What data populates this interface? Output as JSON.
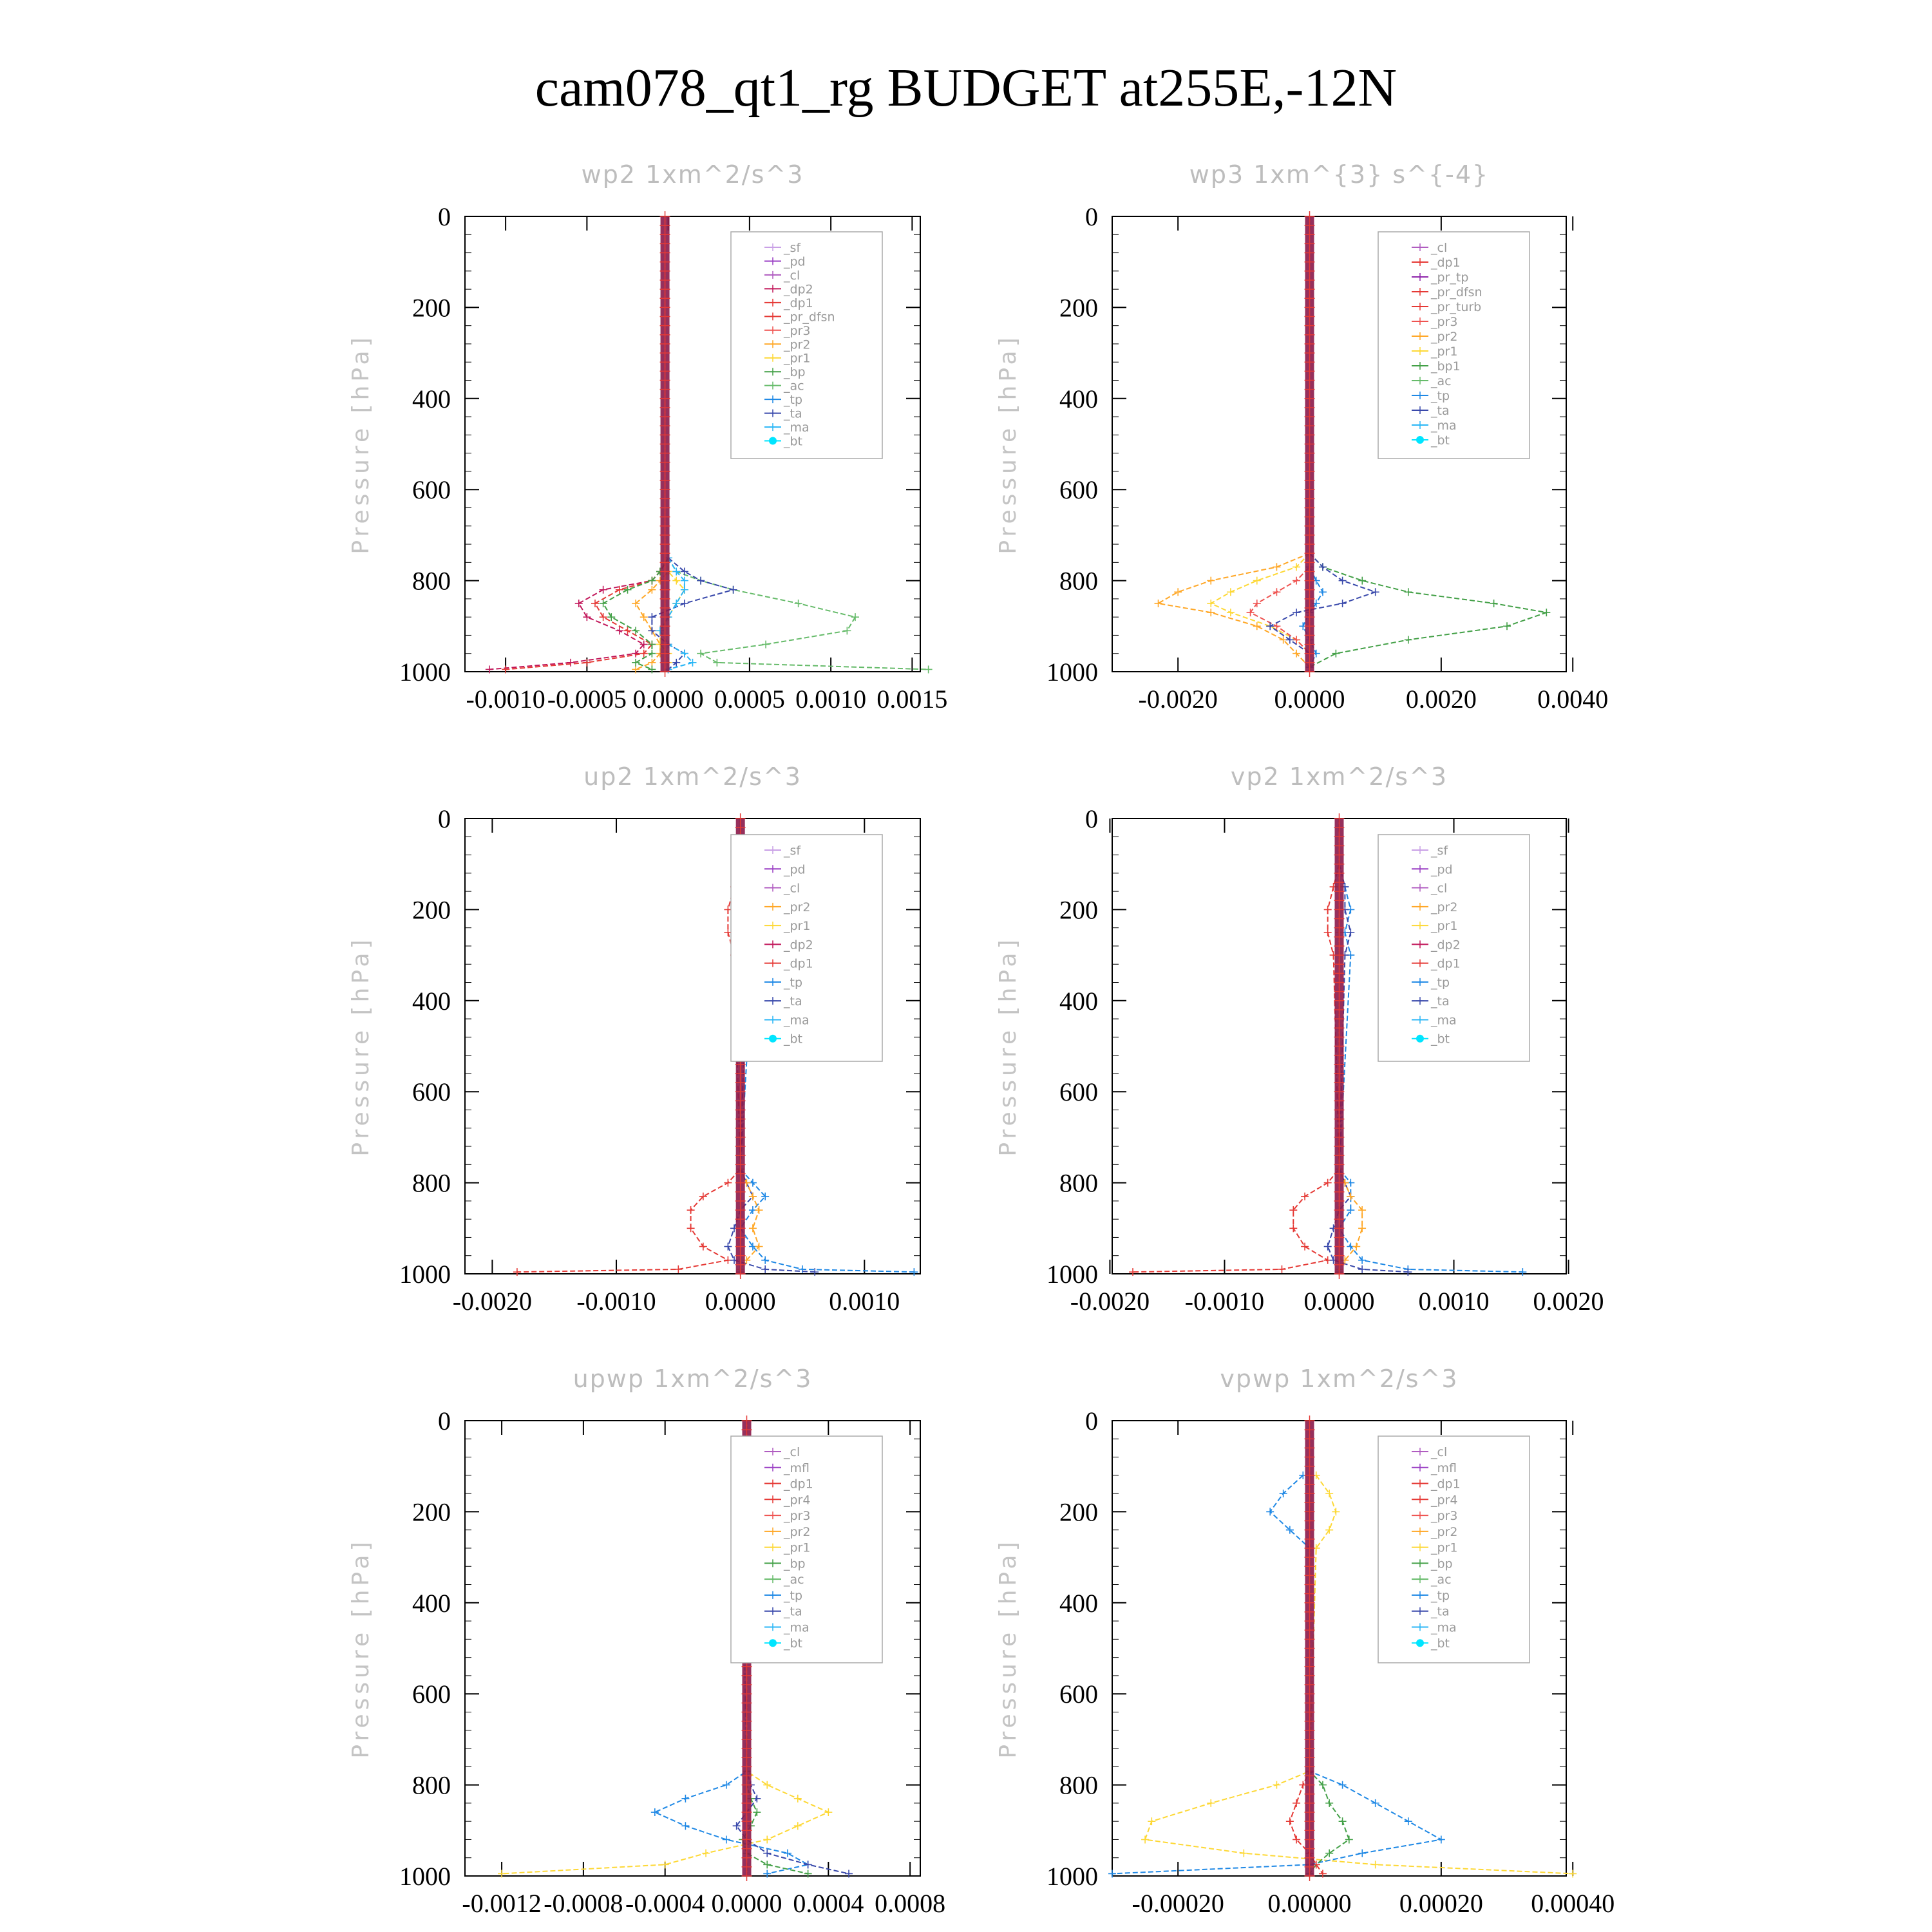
{
  "figure": {
    "title": "cam078_qt1_rg  BUDGET at255E,-12N"
  },
  "colors": {
    "_sf": "#c9a0e6",
    "_pd": "#9a3fc4",
    "_cl": "#b05cc0",
    "_mfl": "#9a3fc4",
    "_dp2": "#c2185b",
    "_dp1": "#e53935",
    "_pr_dfsn": "#e53935",
    "_pr_tp": "#8e24aa",
    "_pr_turb": "#e53935",
    "_pr4": "#e53935",
    "_pr3": "#ef5350",
    "_pr2": "#ffa726",
    "_pr1": "#fdd835",
    "_bp1": "#43a047",
    "_bp": "#43a047",
    "_ac": "#66bb6a",
    "_tp": "#1e88e5",
    "_ta": "#3949ab",
    "_ma": "#29b6f6",
    "_bt": "#00e5ff",
    "budget_band": "#8b1a4a",
    "frame": "#000000",
    "label_gray": "#bdbdbd"
  },
  "chart_data": [
    {
      "id": "wp2",
      "type": "line",
      "title": "wp2   1xm^2/s^3",
      "ylabel": "Pressure [hPa]",
      "ylim": [
        0,
        1000
      ],
      "y_inverted": true,
      "y_ticks": [
        0,
        200,
        400,
        600,
        800,
        1000
      ],
      "xlim": [
        -0.00125,
        0.00155
      ],
      "x_ticks": [
        -0.001,
        -0.0005,
        0.0,
        0.0005,
        0.001,
        0.0015
      ],
      "x_tick_labels": [
        "-0.0010",
        "-0.0005",
        "0.0000",
        "0.0005",
        "0.0010",
        "0.0015"
      ],
      "budget_x": -2e-05,
      "legend": [
        "_sf",
        "_pd",
        "_cl",
        "_dp2",
        "_dp1",
        "_pr_dfsn",
        "_pr3",
        "_pr2",
        "_pr1",
        "_bp",
        "_ac",
        "_tp",
        "_ta",
        "_ma",
        "_bt"
      ],
      "y": [
        750,
        780,
        800,
        820,
        850,
        880,
        910,
        940,
        960,
        980,
        995
      ],
      "series": [
        {
          "name": "_dp2",
          "values": [
            0,
            -5e-05,
            -0.0001,
            -0.0004,
            -0.00055,
            -0.0005,
            -0.0003,
            -0.00015,
            -0.0002,
            -0.0006,
            -0.0011
          ]
        },
        {
          "name": "_dp1",
          "values": [
            0,
            -5e-05,
            -0.0001,
            -0.0003,
            -0.00045,
            -0.0004,
            -0.00025,
            -0.0001,
            -0.00015,
            -0.0005,
            -0.001
          ]
        },
        {
          "name": "_pr2",
          "values": [
            0,
            0,
            -5e-05,
            -0.0001,
            -0.0002,
            -0.00015,
            -0.0001,
            -5e-05,
            -5e-05,
            -0.0001,
            -0.0002
          ]
        },
        {
          "name": "_pr1",
          "values": [
            0,
            0,
            5e-05,
            0.0001,
            5e-05,
            0.0,
            -5e-05,
            -5e-05,
            0.0,
            0.0,
            0.0
          ]
        },
        {
          "name": "_bp",
          "values": [
            0,
            -5e-05,
            -0.0001,
            -0.00025,
            -0.0004,
            -0.00035,
            -0.0002,
            -0.0001,
            -0.0001,
            -0.0002,
            -0.0001
          ]
        },
        {
          "name": "_ac",
          "values": [
            0,
            5e-05,
            0.0002,
            0.0004,
            0.0008,
            0.00115,
            0.0011,
            0.0006,
            0.0002,
            0.0003,
            0.0016
          ]
        },
        {
          "name": "_ta",
          "values": [
            0,
            0.0001,
            0.0002,
            0.0004,
            0.0001,
            -0.0001,
            -0.0001,
            0.0,
            0.0001,
            5e-05,
            0.0
          ]
        },
        {
          "name": "_ma",
          "values": [
            0,
            5e-05,
            0.0001,
            0.0001,
            5e-05,
            0.0,
            -5e-05,
            0.0,
            0.0001,
            0.00015,
            0.0
          ]
        }
      ]
    },
    {
      "id": "wp3",
      "type": "line",
      "title": "wp3   1xm^{3} s^{-4}",
      "ylabel": "Pressure [hPa]",
      "ylim": [
        0,
        1000
      ],
      "y_inverted": true,
      "y_ticks": [
        0,
        200,
        400,
        600,
        800,
        1000
      ],
      "xlim": [
        -0.003,
        0.0039
      ],
      "x_ticks": [
        -0.002,
        0.0,
        0.002,
        0.004
      ],
      "x_tick_labels": [
        "-0.0020",
        "0.0000",
        "0.0020",
        "0.0040"
      ],
      "budget_x": 0.0,
      "legend": [
        "_cl",
        "_dp1",
        "_pr_tp",
        "_pr_dfsn",
        "_pr_turb",
        "_pr3",
        "_pr2",
        "_pr1",
        "_bp1",
        "_ac",
        "_tp",
        "_ta",
        "_ma",
        "_bt"
      ],
      "y": [
        740,
        770,
        800,
        825,
        850,
        870,
        900,
        930,
        960,
        990
      ],
      "series": [
        {
          "name": "_pr2",
          "values": [
            0,
            -0.0005,
            -0.0015,
            -0.002,
            -0.0023,
            -0.0015,
            -0.0008,
            -0.0004,
            -0.0002,
            0.0
          ]
        },
        {
          "name": "_pr1",
          "values": [
            0,
            -0.0002,
            -0.0008,
            -0.0012,
            -0.0015,
            -0.0012,
            -0.0006,
            -0.0002,
            0.0,
            0.0
          ]
        },
        {
          "name": "_pr3",
          "values": [
            0,
            0,
            -0.0002,
            -0.0005,
            -0.0008,
            -0.0009,
            -0.0005,
            -0.0002,
            0.0,
            0.0
          ]
        },
        {
          "name": "_bp1",
          "values": [
            0,
            0.0002,
            0.0008,
            0.0015,
            0.0028,
            0.0036,
            0.003,
            0.0015,
            0.0004,
            0.0
          ]
        },
        {
          "name": "_ta",
          "values": [
            0,
            0.0002,
            0.0005,
            0.001,
            0.0005,
            -0.0002,
            -0.0006,
            -0.0003,
            0.0,
            0.0
          ]
        },
        {
          "name": "_tp",
          "values": [
            0,
            0,
            0.0001,
            0.0002,
            0.0001,
            0.0,
            -0.0001,
            0.0,
            0.0001,
            0.0
          ]
        }
      ]
    },
    {
      "id": "up2",
      "type": "line",
      "title": "up2   1xm^2/s^3",
      "ylabel": "Pressure [hPa]",
      "ylim": [
        0,
        1000
      ],
      "y_inverted": true,
      "y_ticks": [
        0,
        200,
        400,
        600,
        800,
        1000
      ],
      "xlim": [
        -0.00222,
        0.00145
      ],
      "x_ticks": [
        -0.002,
        -0.001,
        0.0,
        0.001
      ],
      "x_tick_labels": [
        "-0.0020",
        "-0.0010",
        "0.0000",
        "0.0010"
      ],
      "budget_x": 0.0,
      "legend": [
        "_sf",
        "_pd",
        "_cl",
        "_pr2",
        "_pr1",
        "_dp2",
        "_dp1",
        "_tp",
        "_ta",
        "_ma",
        "_bt"
      ],
      "y": [
        100,
        150,
        200,
        250,
        300,
        770,
        800,
        830,
        860,
        900,
        940,
        970,
        990,
        996
      ],
      "series": [
        {
          "name": "_dp1",
          "values": [
            0,
            -5e-05,
            -0.0001,
            -0.0001,
            -5e-05,
            0,
            -0.0001,
            -0.0003,
            -0.0004,
            -0.0004,
            -0.0003,
            -0.0001,
            -0.0005,
            -0.0018
          ]
        },
        {
          "name": "_tp",
          "values": [
            0,
            5e-05,
            0.0001,
            5e-05,
            0.0001,
            0,
            0.0001,
            0.0002,
            0.0001,
            0.0,
            0.0001,
            0.0002,
            0.0005,
            0.0014
          ]
        },
        {
          "name": "_ta",
          "values": [
            0,
            5e-05,
            5e-05,
            0.0001,
            5e-05,
            0,
            5e-05,
            0.0001,
            0.0,
            -5e-05,
            -0.0001,
            -5e-05,
            0.0002,
            0.0006
          ]
        },
        {
          "name": "_pr2",
          "values": [
            0,
            0,
            0,
            0,
            0,
            0,
            5e-05,
            0.0001,
            0.00015,
            0.0001,
            0.00015,
            5e-05,
            0.0,
            0.0
          ]
        }
      ]
    },
    {
      "id": "vp2",
      "type": "line",
      "title": "vp2   1xm^2/s^3",
      "ylabel": "Pressure [hPa]",
      "ylim": [
        0,
        1000
      ],
      "y_inverted": true,
      "y_ticks": [
        0,
        200,
        400,
        600,
        800,
        1000
      ],
      "xlim": [
        -0.00198,
        0.00198
      ],
      "x_ticks": [
        -0.002,
        -0.001,
        0.0,
        0.001,
        0.002
      ],
      "x_tick_labels": [
        "-0.0020",
        "-0.0010",
        "0.0000",
        "0.0010",
        "0.0020"
      ],
      "budget_x": 0.0,
      "legend": [
        "_sf",
        "_pd",
        "_cl",
        "_pr2",
        "_pr1",
        "_dp2",
        "_dp1",
        "_tp",
        "_ta",
        "_ma",
        "_bt"
      ],
      "y": [
        100,
        150,
        200,
        250,
        300,
        770,
        800,
        830,
        860,
        900,
        940,
        970,
        990,
        996
      ],
      "series": [
        {
          "name": "_dp1",
          "values": [
            0,
            -5e-05,
            -0.0001,
            -0.0001,
            -5e-05,
            0,
            -0.0001,
            -0.0003,
            -0.0004,
            -0.0004,
            -0.0003,
            -0.0001,
            -0.0005,
            -0.0018
          ]
        },
        {
          "name": "_tp",
          "values": [
            0,
            5e-05,
            0.0001,
            5e-05,
            0.0001,
            0,
            0.0001,
            0.0001,
            0.0001,
            0.0,
            0.0001,
            0.0002,
            0.0006,
            0.0016
          ]
        },
        {
          "name": "_ta",
          "values": [
            0,
            5e-05,
            5e-05,
            0.0001,
            5e-05,
            0,
            5e-05,
            0.0001,
            0.0,
            -5e-05,
            -0.0001,
            -5e-05,
            0.0002,
            0.0006
          ]
        },
        {
          "name": "_pr2",
          "values": [
            0,
            0,
            0,
            0,
            0,
            0,
            5e-05,
            0.0001,
            0.0002,
            0.0002,
            0.00015,
            5e-05,
            0.0,
            0.0
          ]
        }
      ]
    },
    {
      "id": "upwp",
      "type": "line",
      "title": "upwp   1xm^2/s^3",
      "ylabel": "Pressure [hPa]",
      "ylim": [
        0,
        1000
      ],
      "y_inverted": true,
      "y_ticks": [
        0,
        200,
        400,
        600,
        800,
        1000
      ],
      "xlim": [
        -0.00138,
        0.00085
      ],
      "x_ticks": [
        -0.0012,
        -0.0008,
        -0.0004,
        0.0,
        0.0004,
        0.0008
      ],
      "x_tick_labels": [
        "-0.0012",
        "-0.0008",
        "-0.0004",
        "0.0000",
        "0.0004",
        "0.0008"
      ],
      "budget_x": 0.0,
      "legend": [
        "_cl",
        "_mfl",
        "_dp1",
        "_pr4",
        "_pr3",
        "_pr2",
        "_pr1",
        "_bp",
        "_ac",
        "_tp",
        "_ta",
        "_ma",
        "_bt"
      ],
      "y": [
        150,
        200,
        250,
        300,
        770,
        800,
        830,
        860,
        890,
        920,
        950,
        975,
        995
      ],
      "series": [
        {
          "name": "_pr1",
          "values": [
            2e-05,
            3e-05,
            3e-05,
            0.0,
            0.0,
            0.0001,
            0.00025,
            0.0004,
            0.00025,
            0.0001,
            -0.0002,
            -0.0004,
            -0.0012
          ]
        },
        {
          "name": "_tp",
          "values": [
            -2e-05,
            -5e-05,
            -3e-05,
            -2e-05,
            0.0,
            -0.0001,
            -0.0003,
            -0.00045,
            -0.0003,
            -0.0001,
            0.0002,
            0.0003,
            0.0001
          ]
        },
        {
          "name": "_ta",
          "values": [
            0,
            0,
            0,
            0,
            0,
            2e-05,
            5e-05,
            0.0,
            -5e-05,
            0.0,
            0.0001,
            0.0003,
            0.0005
          ]
        },
        {
          "name": "_bp",
          "values": [
            0,
            0,
            0,
            0,
            0,
            0.0,
            2e-05,
            5e-05,
            2e-05,
            -2e-05,
            0.0,
            0.0001,
            0.0003
          ]
        }
      ]
    },
    {
      "id": "vpwp",
      "type": "line",
      "title": "vpwp   1xm^2/s^3",
      "ylabel": "Pressure [hPa]",
      "ylim": [
        0,
        1000
      ],
      "y_inverted": true,
      "y_ticks": [
        0,
        200,
        400,
        600,
        800,
        1000
      ],
      "xlim": [
        -0.0003,
        0.00039
      ],
      "x_ticks": [
        -0.0002,
        0.0,
        0.0002,
        0.0004
      ],
      "x_tick_labels": [
        "-0.00020",
        "0.00000",
        "0.00020",
        "0.00040"
      ],
      "budget_x": 0.0,
      "legend": [
        "_cl",
        "_mfl",
        "_dp1",
        "_pr4",
        "_pr3",
        "_pr2",
        "_pr1",
        "_bp",
        "_ac",
        "_tp",
        "_ta",
        "_ma",
        "_bt"
      ],
      "y": [
        120,
        160,
        200,
        240,
        280,
        770,
        800,
        840,
        880,
        920,
        950,
        975,
        995
      ],
      "series": [
        {
          "name": "_pr1",
          "values": [
            1e-05,
            3e-05,
            4e-05,
            3e-05,
            1e-05,
            0.0,
            -5e-05,
            -0.00015,
            -0.00024,
            -0.00025,
            -0.0001,
            0.0001,
            0.0004
          ]
        },
        {
          "name": "_tp",
          "values": [
            -1e-05,
            -4e-05,
            -6e-05,
            -3e-05,
            0.0,
            0.0,
            5e-05,
            0.0001,
            0.00015,
            0.0002,
            8e-05,
            0.0,
            -0.0003
          ]
        },
        {
          "name": "_bp",
          "values": [
            0,
            0,
            0,
            0,
            0,
            0.0,
            2e-05,
            3e-05,
            5e-05,
            6e-05,
            3e-05,
            1e-05,
            0.0
          ]
        },
        {
          "name": "_dp1",
          "values": [
            0,
            0,
            0,
            0,
            0,
            0.0,
            -1e-05,
            -2e-05,
            -3e-05,
            -2e-05,
            0.0,
            1e-05,
            2e-05
          ]
        }
      ]
    }
  ]
}
